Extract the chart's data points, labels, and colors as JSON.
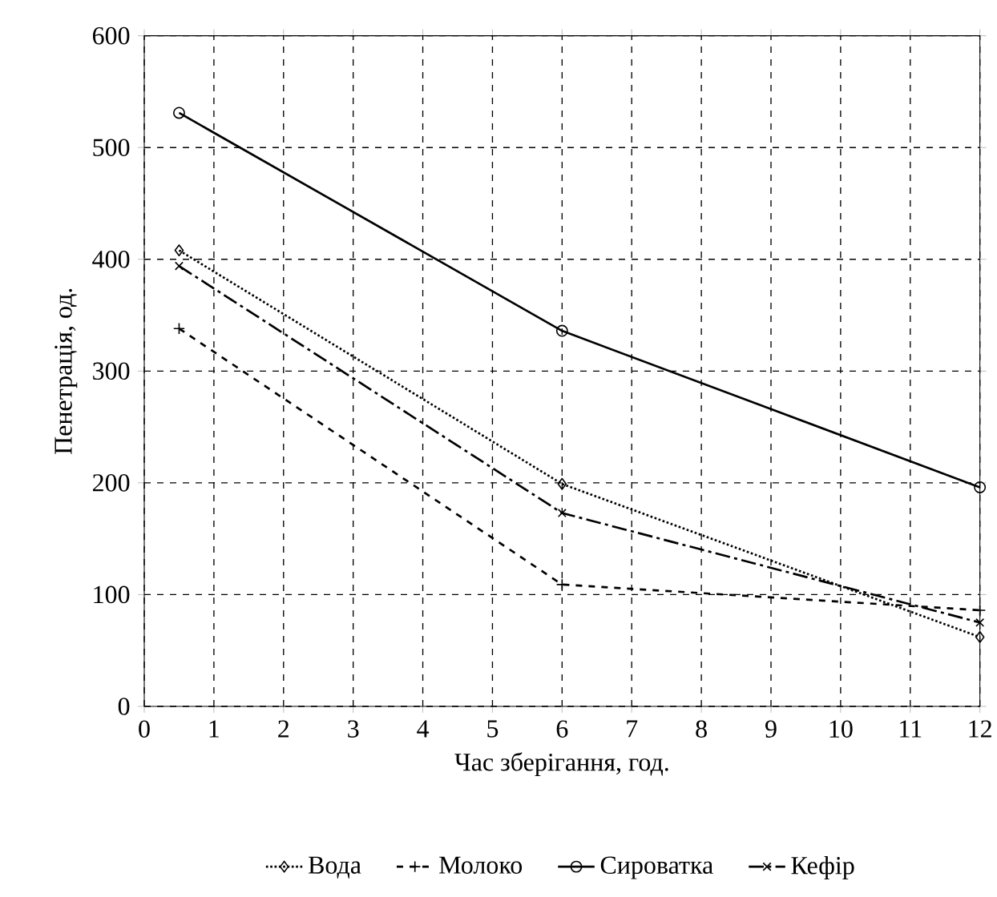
{
  "chart_data": {
    "type": "line",
    "xlabel": "Час зберігання, год.",
    "ylabel": "Пенетрація, од.",
    "x": [
      0.5,
      6,
      12
    ],
    "series": [
      {
        "name": "Вода",
        "color": "#000000",
        "values": [
          408,
          199,
          62
        ],
        "marker": "diamond",
        "line_style": "dotted"
      },
      {
        "name": "Молоко",
        "color": "#000000",
        "values": [
          338,
          109,
          86
        ],
        "marker": "plus",
        "line_style": "dashed"
      },
      {
        "name": "Сироватка",
        "color": "#000000",
        "values": [
          531,
          336,
          196
        ],
        "marker": "circle",
        "line_style": "solid"
      },
      {
        "name": "Кефір",
        "color": "#000000",
        "values": [
          394,
          173,
          75
        ],
        "marker": "cross",
        "line_style": "dashdot"
      }
    ],
    "xlim": [
      0,
      12
    ],
    "xticks": [
      0,
      1,
      2,
      3,
      4,
      5,
      6,
      7,
      8,
      9,
      10,
      11,
      12
    ],
    "ylim": [
      0,
      600
    ],
    "yticks": [
      0,
      100,
      200,
      300,
      400,
      500,
      600
    ],
    "grid": true,
    "legend": "bottom"
  }
}
